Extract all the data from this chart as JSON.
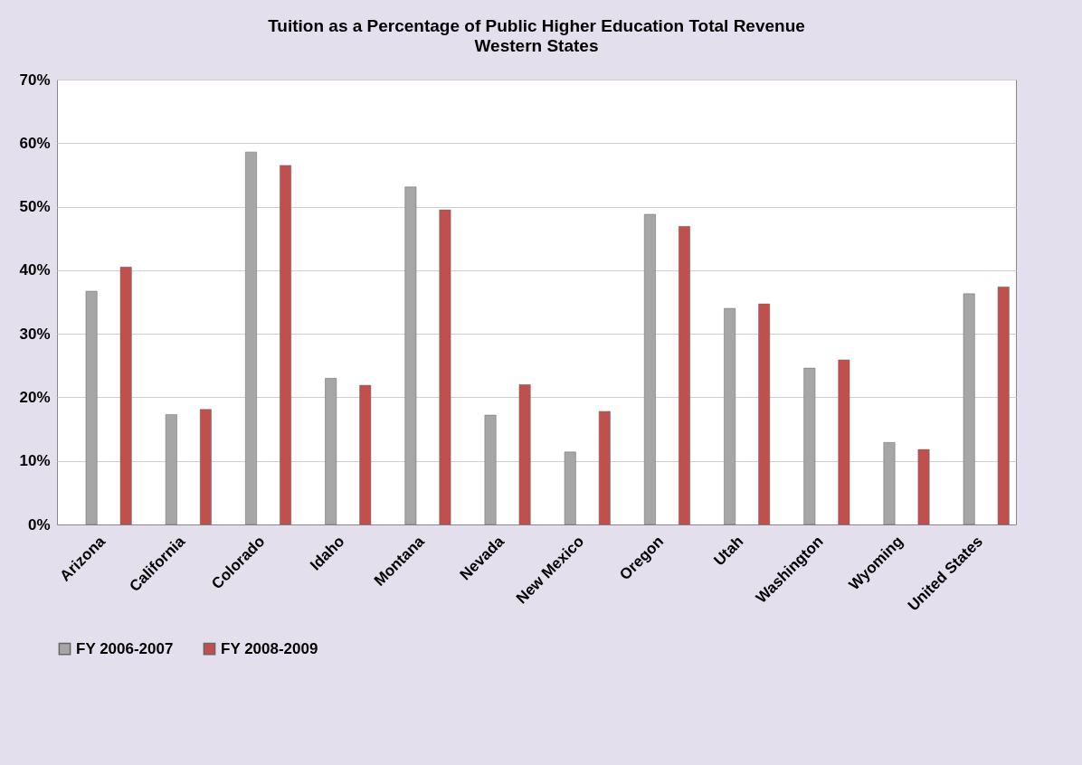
{
  "chart_data": {
    "type": "bar",
    "title": "Tuition as a Percentage of Public Higher Education Total Revenue",
    "subtitle": "Western States",
    "categories": [
      "Arizona",
      "California",
      "Colorado",
      "Idaho",
      "Montana",
      "Nevada",
      "New Mexico",
      "Oregon",
      "Utah",
      "Washington",
      "Wyoming",
      "United States"
    ],
    "series": [
      {
        "name": "FY 2006-2007",
        "color": "#a6a6a6",
        "values": [
          36.7,
          17.3,
          58.6,
          23.0,
          53.1,
          17.2,
          11.4,
          48.8,
          34.0,
          24.6,
          12.9,
          36.3
        ]
      },
      {
        "name": "FY 2008-2009",
        "color": "#c0504d",
        "values": [
          40.5,
          18.1,
          56.5,
          21.9,
          49.5,
          22.0,
          17.8,
          46.9,
          34.7,
          25.9,
          11.8,
          37.4
        ]
      }
    ],
    "ylim": [
      0,
      70
    ],
    "yticks": [
      {
        "value": 0,
        "label": "0%"
      },
      {
        "value": 10,
        "label": "10%"
      },
      {
        "value": 20,
        "label": "20%"
      },
      {
        "value": 30,
        "label": "30%"
      },
      {
        "value": 40,
        "label": "40%"
      },
      {
        "value": 50,
        "label": "50%"
      },
      {
        "value": 60,
        "label": "60%"
      },
      {
        "value": 70,
        "label": "70%"
      }
    ],
    "grid": "y",
    "legend": "bottom"
  }
}
